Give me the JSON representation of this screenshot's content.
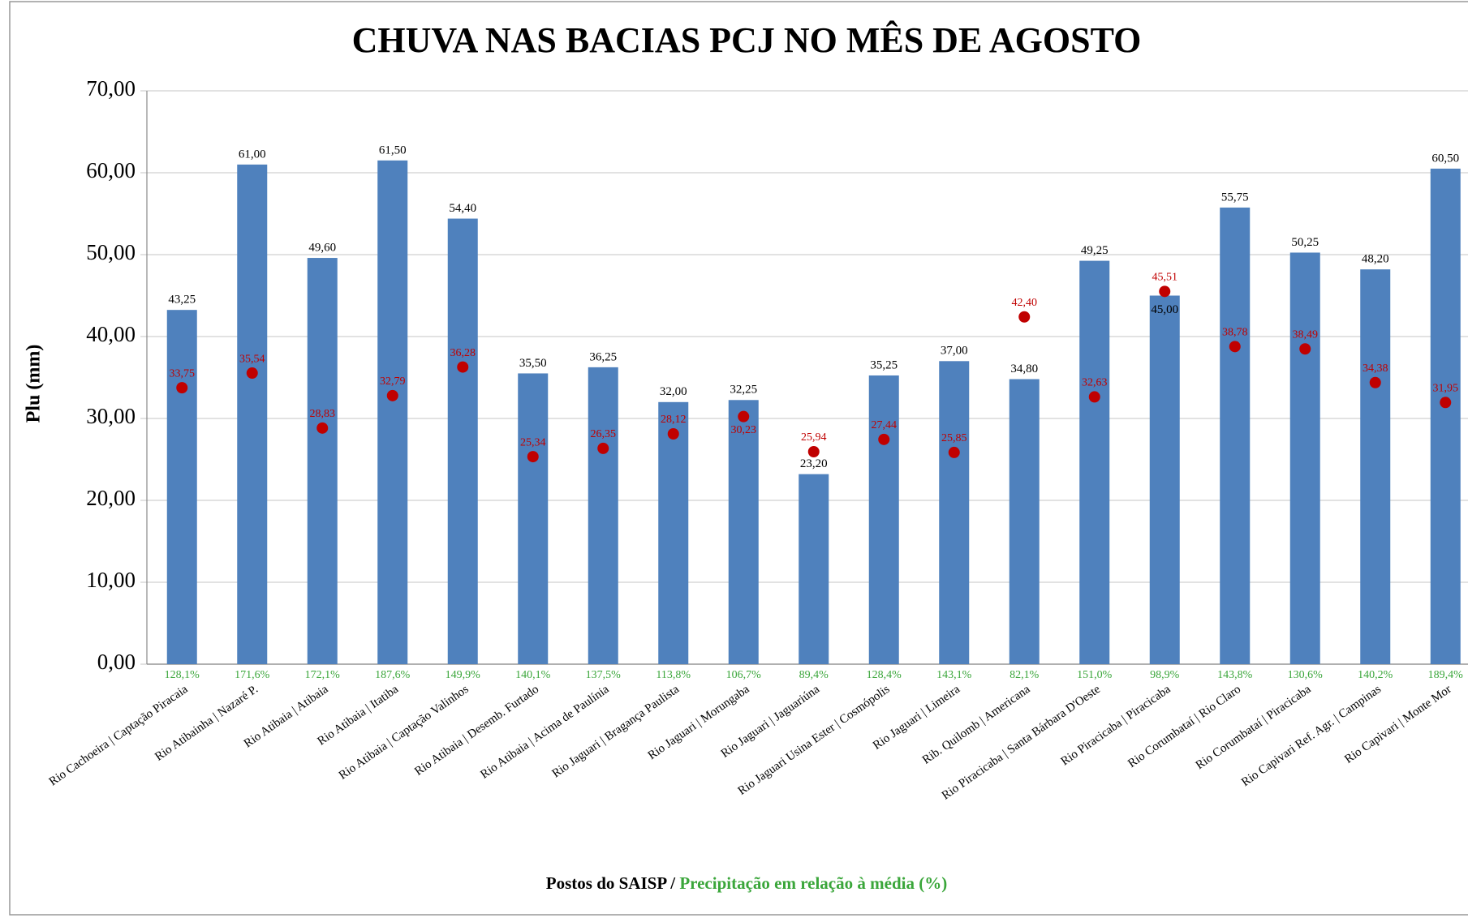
{
  "chart_data": {
    "type": "bar",
    "title": "CHUVA NAS BACIAS PCJ NO MÊS DE AGOSTO",
    "y_label": "Plu (mm)",
    "x_label": "Postos do SAISP /",
    "x_label_2": "Precipitação em relação à média (%)",
    "categories": [
      "Rio Cachoeira | Captação Piracaia",
      "Rio Atibainha | Nazaré P.",
      "Rio Atibaia | Atibaia",
      "Rio Atibaia | Itatiba",
      "Rio Atibaia | Captação Valinhos",
      "Rio Atibaia | Desemb. Furtado",
      "Rio Atibaia | Acima de Paulínia",
      "Rio Jaguari | Bragança Paulista",
      "Rio Jaguari | Morungaba",
      "Rio Jaguari | Jaguariúna",
      "Rio Jaguari Usina Ester | Cosmópolis",
      "Rio Jaguari | Limeira",
      "Rib. Quilomb | Americana",
      "Rio Piracicaba | Santa Bárbara D'Oeste",
      "Rio Piracicaba | Piracicaba",
      "Rio Corumbataí | Rio Claro",
      "Rio Corumbataí | Piracicaba",
      "Rio Capivari Ref. Agr. | Campinas",
      "Rio Capivari | Monte Mor"
    ],
    "bars": {
      "color": "#4f81bd",
      "values": [
        43.25,
        61.0,
        49.6,
        61.5,
        54.4,
        35.5,
        36.25,
        32.0,
        32.25,
        23.2,
        35.25,
        37.0,
        34.8,
        49.25,
        45.0,
        55.75,
        50.25,
        48.2,
        60.5
      ],
      "value_labels": [
        "43,25",
        "61,00",
        "49,60",
        "61,50",
        "54,40",
        "35,50",
        "36,25",
        "32,00",
        "32,25",
        "23,20",
        "35,25",
        "37,00",
        "34,80",
        "49,25",
        "45,00",
        "55,75",
        "50,25",
        "48,20",
        "60,50"
      ]
    },
    "dots": {
      "color": "#c00000",
      "values": [
        33.75,
        35.54,
        28.83,
        32.79,
        36.28,
        25.34,
        26.35,
        28.12,
        30.23,
        25.94,
        27.44,
        25.85,
        42.4,
        32.63,
        45.51,
        38.78,
        38.49,
        34.38,
        31.95
      ],
      "value_labels": [
        "33,75",
        "35,54",
        "28,83",
        "32,79",
        "36,28",
        "25,34",
        "26,35",
        "28,12",
        "30,23",
        "25,94",
        "27,44",
        "25,85",
        "42,40",
        "32,63",
        "45,51",
        "38,78",
        "38,49",
        "34,38",
        "31,95"
      ]
    },
    "percent_color": "#3aa63a",
    "percent_labels": [
      "128,1%",
      "171,6%",
      "172,1%",
      "187,6%",
      "149,9%",
      "140,1%",
      "137,5%",
      "113,8%",
      "106,7%",
      "89,4%",
      "128,4%",
      "143,1%",
      "82,1%",
      "151,0%",
      "98,9%",
      "143,8%",
      "130,6%",
      "140,2%",
      "189,4%"
    ],
    "ylim": [
      0,
      70
    ],
    "yticks": [
      {
        "value": 0,
        "label": "0,00"
      },
      {
        "value": 10,
        "label": "10,00"
      },
      {
        "value": 20,
        "label": "20,00"
      },
      {
        "value": 30,
        "label": "30,00"
      },
      {
        "value": 40,
        "label": "40,00"
      },
      {
        "value": 50,
        "label": "50,00"
      },
      {
        "value": 60,
        "label": "60,00"
      },
      {
        "value": 70,
        "label": "70,00"
      }
    ],
    "grid": true
  }
}
